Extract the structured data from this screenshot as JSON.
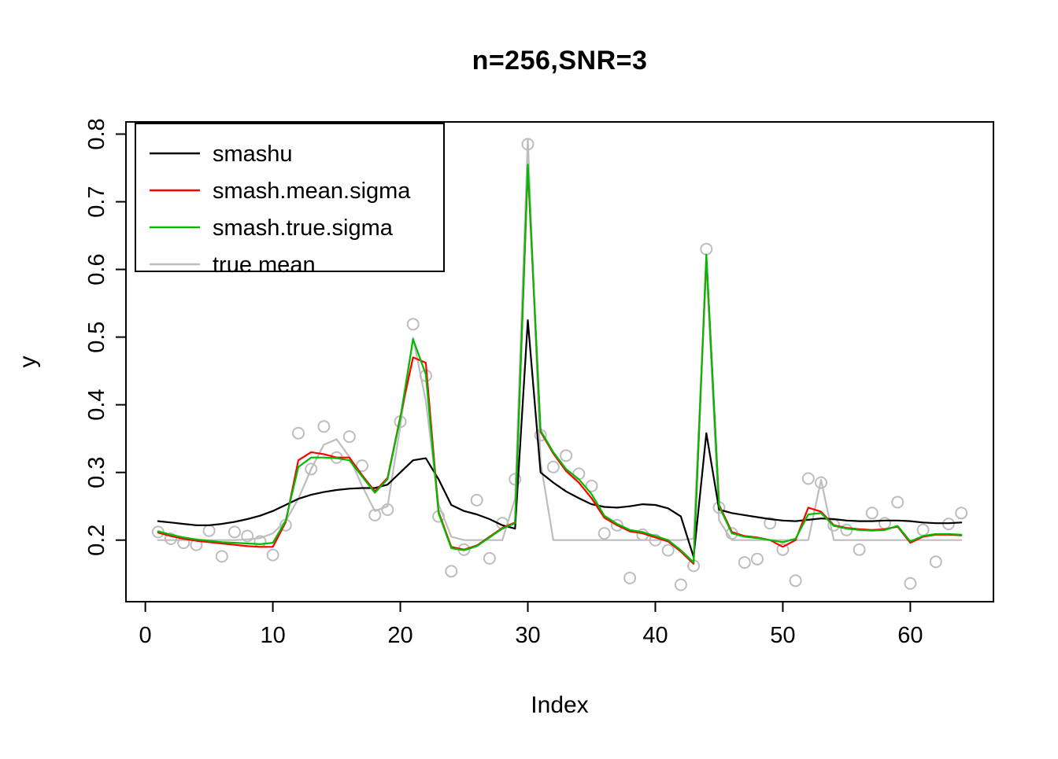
{
  "chart_data": {
    "type": "line",
    "title": "n=256,SNR=3",
    "xlabel": "Index",
    "ylabel": "y",
    "xlim": [
      -1.52,
      66.52
    ],
    "ylim": [
      0.109,
      0.818
    ],
    "x_ticks": [
      0,
      10,
      20,
      30,
      40,
      50,
      60
    ],
    "y_ticks": [
      0.2,
      0.3,
      0.4,
      0.5,
      0.6,
      0.7,
      0.8
    ],
    "grid": false,
    "legend_position": "top-left",
    "x": [
      1,
      2,
      3,
      4,
      5,
      6,
      7,
      8,
      9,
      10,
      11,
      12,
      13,
      14,
      15,
      16,
      17,
      18,
      19,
      20,
      21,
      22,
      23,
      24,
      25,
      26,
      27,
      28,
      29,
      30,
      31,
      32,
      33,
      34,
      35,
      36,
      37,
      38,
      39,
      40,
      41,
      42,
      43,
      44,
      45,
      46,
      47,
      48,
      49,
      50,
      51,
      52,
      53,
      54,
      55,
      56,
      57,
      58,
      59,
      60,
      61,
      62,
      63,
      64
    ],
    "points": {
      "name": "observations",
      "color": "#BDBDBD",
      "values": [
        0.212,
        0.202,
        0.196,
        0.193,
        0.214,
        0.176,
        0.212,
        0.206,
        0.198,
        0.178,
        0.222,
        0.358,
        0.305,
        0.368,
        0.322,
        0.353,
        0.31,
        0.237,
        0.245,
        0.375,
        0.519,
        0.443,
        0.235,
        0.154,
        0.186,
        0.259,
        0.173,
        0.225,
        0.29,
        0.785,
        0.355,
        0.308,
        0.325,
        0.298,
        0.28,
        0.21,
        0.222,
        0.144,
        0.208,
        0.2,
        0.185,
        0.134,
        0.162,
        0.63,
        0.248,
        0.21,
        0.167,
        0.172,
        0.225,
        0.186,
        0.14,
        0.291,
        0.285,
        0.222,
        0.215,
        0.186,
        0.24,
        0.225,
        0.256,
        0.136,
        0.215,
        0.168,
        0.224,
        0.24
      ]
    },
    "series": [
      {
        "name": "smashu",
        "color": "#000000",
        "values": [
          0.228,
          0.226,
          0.224,
          0.222,
          0.222,
          0.224,
          0.227,
          0.231,
          0.236,
          0.243,
          0.252,
          0.261,
          0.267,
          0.271,
          0.274,
          0.276,
          0.277,
          0.277,
          0.282,
          0.3,
          0.318,
          0.321,
          0.29,
          0.252,
          0.243,
          0.238,
          0.231,
          0.222,
          0.217,
          0.525,
          0.3,
          0.285,
          0.272,
          0.262,
          0.253,
          0.249,
          0.248,
          0.25,
          0.253,
          0.252,
          0.247,
          0.235,
          0.175,
          0.358,
          0.245,
          0.24,
          0.237,
          0.234,
          0.231,
          0.229,
          0.228,
          0.23,
          0.232,
          0.231,
          0.229,
          0.228,
          0.228,
          0.229,
          0.229,
          0.228,
          0.226,
          0.225,
          0.225,
          0.226
        ]
      },
      {
        "name": "smash.mean.sigma",
        "color": "#FF0000",
        "values": [
          0.211,
          0.206,
          0.202,
          0.199,
          0.197,
          0.195,
          0.193,
          0.191,
          0.19,
          0.19,
          0.226,
          0.318,
          0.33,
          0.327,
          0.322,
          0.322,
          0.296,
          0.272,
          0.292,
          0.382,
          0.47,
          0.462,
          0.242,
          0.19,
          0.186,
          0.192,
          0.205,
          0.218,
          0.226,
          0.75,
          0.36,
          0.328,
          0.302,
          0.285,
          0.262,
          0.233,
          0.222,
          0.213,
          0.21,
          0.204,
          0.198,
          0.183,
          0.165,
          0.62,
          0.252,
          0.212,
          0.206,
          0.204,
          0.2,
          0.19,
          0.2,
          0.248,
          0.242,
          0.222,
          0.218,
          0.216,
          0.215,
          0.216,
          0.22,
          0.196,
          0.205,
          0.208,
          0.208,
          0.207
        ]
      },
      {
        "name": "smash.true.sigma",
        "color": "#00BB00",
        "values": [
          0.213,
          0.208,
          0.204,
          0.201,
          0.199,
          0.197,
          0.196,
          0.195,
          0.194,
          0.196,
          0.228,
          0.308,
          0.322,
          0.322,
          0.321,
          0.318,
          0.294,
          0.27,
          0.29,
          0.38,
          0.497,
          0.445,
          0.24,
          0.188,
          0.185,
          0.191,
          0.204,
          0.217,
          0.225,
          0.755,
          0.362,
          0.33,
          0.305,
          0.29,
          0.268,
          0.236,
          0.224,
          0.215,
          0.212,
          0.206,
          0.2,
          0.185,
          0.167,
          0.622,
          0.25,
          0.21,
          0.205,
          0.203,
          0.2,
          0.197,
          0.202,
          0.238,
          0.24,
          0.221,
          0.217,
          0.215,
          0.214,
          0.215,
          0.221,
          0.198,
          0.206,
          0.209,
          0.209,
          0.208
        ]
      },
      {
        "name": "true mean",
        "color": "#BDBDBD",
        "values": [
          0.2,
          0.2,
          0.2,
          0.2,
          0.2,
          0.2,
          0.2,
          0.201,
          0.203,
          0.21,
          0.228,
          0.261,
          0.305,
          0.341,
          0.349,
          0.323,
          0.28,
          0.243,
          0.25,
          0.368,
          0.499,
          0.406,
          0.253,
          0.205,
          0.2,
          0.2,
          0.2,
          0.2,
          0.261,
          0.792,
          0.315,
          0.2,
          0.2,
          0.2,
          0.2,
          0.2,
          0.2,
          0.2,
          0.2,
          0.2,
          0.2,
          0.2,
          0.202,
          0.607,
          0.229,
          0.2,
          0.2,
          0.2,
          0.2,
          0.2,
          0.2,
          0.2,
          0.289,
          0.2,
          0.2,
          0.2,
          0.2,
          0.2,
          0.2,
          0.2,
          0.2,
          0.2,
          0.2,
          0.2
        ]
      }
    ],
    "legend_entries": [
      "smashu",
      "smash.mean.sigma",
      "smash.true.sigma",
      "true mean"
    ]
  }
}
